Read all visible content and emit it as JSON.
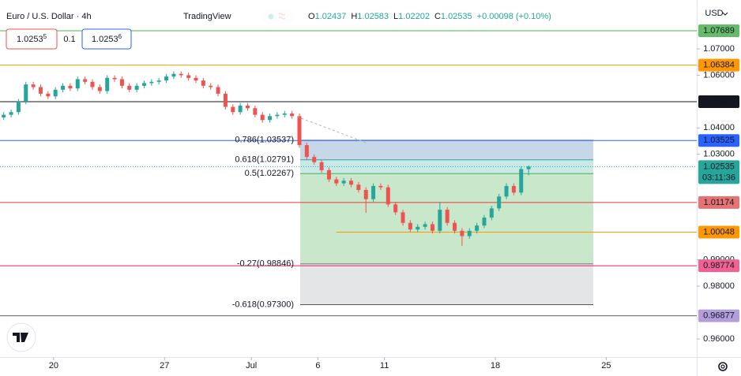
{
  "chart_data": {
    "type": "candlestick",
    "title": "Euro / U.S. Dollar · 4h",
    "brand": "TradingView",
    "ohlc_legend": [
      {
        "key": "O",
        "value": 1.02437
      },
      {
        "key": "H",
        "value": 1.02583
      },
      {
        "key": "L",
        "value": 1.02202
      },
      {
        "key": "C",
        "value": 1.02535
      }
    ],
    "change": "+0.00098 (+0.10%)",
    "sell_price": "1.0253",
    "sell_fraction": "5",
    "spread": "0.1",
    "buy_price": "1.0253",
    "buy_fraction": "6",
    "currency": "USD",
    "countdown": "03:11:36",
    "up_color": "#26a69a",
    "down_color": "#ef5350",
    "grid": false,
    "ylim": [
      0.95311,
      1.08853
    ],
    "yticks": [
      {
        "value": 1.07,
        "label": "1.07000"
      },
      {
        "value": 1.06,
        "label": "1.06000"
      },
      {
        "value": 1.04,
        "label": "1.04000"
      },
      {
        "value": 1.03,
        "label": "1.03000"
      },
      {
        "value": 0.99,
        "label": "0.99000"
      },
      {
        "value": 0.98,
        "label": "0.98000"
      },
      {
        "value": 0.96,
        "label": "0.96000"
      }
    ],
    "xlim": [
      0,
      188.5
    ],
    "xticks": [
      {
        "value": 14.5,
        "label": "20"
      },
      {
        "value": 44.5,
        "label": "27"
      },
      {
        "value": 68,
        "label": "Jul"
      },
      {
        "value": 86,
        "label": "6"
      },
      {
        "value": 104,
        "label": "11"
      },
      {
        "value": 134,
        "label": "18"
      },
      {
        "value": 164,
        "label": "25"
      }
    ],
    "open": [
      1.044,
      1.045,
      1.046,
      1.05,
      1.0565,
      1.0555,
      1.053,
      1.052,
      1.0545,
      1.056,
      1.055,
      1.0585,
      1.0575,
      1.0555,
      1.054,
      1.059,
      1.0585,
      1.056,
      1.0545,
      1.056,
      1.057,
      1.0575,
      1.058,
      1.0595,
      1.0605,
      1.06,
      1.059,
      1.058,
      1.056,
      1.0555,
      1.053,
      1.048,
      1.046,
      1.0485,
      1.0475,
      1.045,
      1.043,
      1.0445,
      1.045,
      1.0455,
      1.0445,
      1.0335,
      1.029,
      1.027,
      1.024,
      1.0205,
      1.019,
      1.02,
      1.0185,
      1.0165,
      1.013,
      1.018,
      1.0175,
      1.011,
      1.008,
      1.004,
      1.0015,
      1.0025,
      1.0035,
      1.001,
      1.009,
      1.004,
      1.001,
      0.999,
      1.001,
      1.003,
      1.006,
      1.0095,
      1.014,
      1.018,
      1.0155,
      1.02437
    ],
    "high": [
      1.046,
      1.047,
      1.051,
      1.0575,
      1.0575,
      1.0565,
      1.054,
      1.0555,
      1.057,
      1.057,
      1.0595,
      1.0595,
      1.0585,
      1.0565,
      1.06,
      1.06,
      1.0595,
      1.057,
      1.057,
      1.058,
      1.0585,
      1.059,
      1.0605,
      1.0615,
      1.0615,
      1.061,
      1.06,
      1.059,
      1.057,
      1.0565,
      1.054,
      1.049,
      1.0495,
      1.0495,
      1.0485,
      1.046,
      1.0455,
      1.046,
      1.0465,
      1.0465,
      1.0455,
      1.0345,
      1.03,
      1.028,
      1.025,
      1.0215,
      1.021,
      1.021,
      1.0195,
      1.0175,
      1.019,
      1.019,
      1.0185,
      1.012,
      1.009,
      1.005,
      1.0035,
      1.0045,
      1.0045,
      1.012,
      1.01,
      1.005,
      1.002,
      1.002,
      1.004,
      1.007,
      1.0105,
      1.015,
      1.019,
      1.019,
      1.0254,
      1.02583
    ],
    "low": [
      1.043,
      1.044,
      1.045,
      1.049,
      1.0545,
      1.052,
      1.051,
      1.051,
      1.0535,
      1.054,
      1.054,
      1.0565,
      1.0545,
      1.053,
      1.053,
      1.0575,
      1.055,
      1.0535,
      1.0535,
      1.055,
      1.056,
      1.0565,
      1.057,
      1.0585,
      1.059,
      1.058,
      1.057,
      1.055,
      1.0545,
      1.052,
      1.047,
      1.045,
      1.045,
      1.0465,
      1.044,
      1.042,
      1.042,
      1.0435,
      1.044,
      1.0435,
      1.0325,
      1.028,
      1.026,
      1.023,
      1.0195,
      1.018,
      1.018,
      1.0175,
      1.0155,
      1.0078,
      1.012,
      1.0165,
      1.01,
      1.007,
      1.003,
      1.0005,
      1.0005,
      1.0015,
      1.0,
      1.0,
      1.003,
      1.0,
      0.9953,
      0.998,
      1.0,
      1.002,
      1.005,
      1.0085,
      1.013,
      1.0145,
      1.0145,
      1.02202
    ],
    "close": [
      1.045,
      1.046,
      1.05,
      1.0565,
      1.0555,
      1.053,
      1.052,
      1.0545,
      1.056,
      1.055,
      1.0585,
      1.0575,
      1.0555,
      1.054,
      1.059,
      1.0585,
      1.056,
      1.0545,
      1.056,
      1.057,
      1.0575,
      1.058,
      1.0595,
      1.0605,
      1.06,
      1.059,
      1.058,
      1.056,
      1.0555,
      1.053,
      1.048,
      1.046,
      1.0485,
      1.0475,
      1.045,
      1.043,
      1.0445,
      1.045,
      1.0455,
      1.0445,
      1.0335,
      1.029,
      1.027,
      1.024,
      1.0205,
      1.019,
      1.02,
      1.0185,
      1.0165,
      1.013,
      1.018,
      1.0175,
      1.011,
      1.008,
      1.004,
      1.0015,
      1.0025,
      1.0035,
      1.001,
      1.009,
      1.004,
      1.001,
      0.999,
      1.001,
      1.003,
      1.006,
      1.0095,
      1.014,
      1.018,
      1.0155,
      1.0244,
      1.02535
    ],
    "levels": [
      {
        "price": 1.07689,
        "color": "#4caf50",
        "label_color": "#66bb6a",
        "text_color": "#131722"
      },
      {
        "price": 1.06384,
        "color": "#ff9800",
        "label_color": "#ff9800",
        "text_color": "#131722"
      },
      {
        "price": 1.04996,
        "color": "#131722",
        "label_color": "#131722",
        "text_color": "#ffffff"
      },
      {
        "price": 1.03525,
        "color": "#2962ff",
        "label_color": "#2962ff",
        "text_color": "#ffffff"
      },
      {
        "price": 1.01174,
        "color": "#e53935",
        "label_color": "#e57373",
        "text_color": "#131722"
      },
      {
        "price": 1.00048,
        "color": "#ff9800",
        "label_color": "#ff9800",
        "text_color": "#131722",
        "partial": true
      },
      {
        "price": 0.98774,
        "color": "#e91e63",
        "label_color": "#f06292",
        "text_color": "#ffffff"
      },
      {
        "price": 0.96877,
        "color": "#616161",
        "label_color": "#b39ddb",
        "text_color": "#131722"
      }
    ],
    "last_price": 1.02535,
    "fib_levels": [
      {
        "value": 1.03537,
        "label": "0.786(1.03537)",
        "color": "#5b8fb9"
      },
      {
        "value": 1.02791,
        "label": "0.618(1.02791)",
        "color": "#26a69a"
      },
      {
        "value": 1.02267,
        "label": "0.5(1.02267)",
        "color": "#4caf50"
      },
      {
        "value": 0.98846,
        "label": "-0.27(0.98846)",
        "color": "#787b86"
      },
      {
        "value": 0.973,
        "label": "-0.618(0.97300)",
        "color": "#555555"
      }
    ]
  }
}
